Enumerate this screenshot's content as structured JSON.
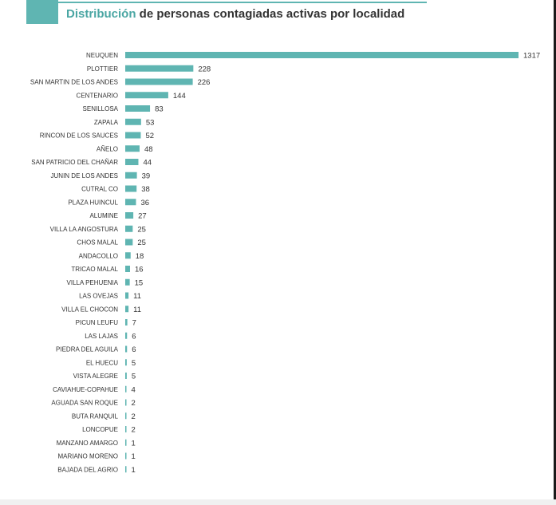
{
  "header": {
    "title_accent": "Distribución",
    "title_rest": " de personas contagiadas activas por localidad"
  },
  "colors": {
    "bar": "#5fb5b2",
    "accent": "#4aa6a3",
    "text": "#333333"
  },
  "chart_data": {
    "type": "bar",
    "orientation": "horizontal",
    "title": "Distribución de personas contagiadas activas por localidad",
    "xlabel": "",
    "ylabel": "",
    "xlim": [
      0,
      1317
    ],
    "grid": false,
    "legend": "none",
    "categories": [
      "NEUQUEN",
      "PLOTTIER",
      "SAN MARTIN DE LOS ANDES",
      "CENTENARIO",
      "SENILLOSA",
      "ZAPALA",
      "RINCON DE LOS SAUCES",
      "AÑELO",
      "SAN PATRICIO DEL CHAÑAR",
      "JUNIN DE LOS ANDES",
      "CUTRAL CO",
      "PLAZA HUINCUL",
      "ALUMINE",
      "VILLA LA ANGOSTURA",
      "CHOS MALAL",
      "ANDACOLLO",
      "TRICAO MALAL",
      "VILLA PEHUENIA",
      "LAS OVEJAS",
      "VILLA EL CHOCON",
      "PICUN LEUFU",
      "LAS LAJAS",
      "PIEDRA DEL AGUILA",
      "EL HUECU",
      "VISTA ALEGRE",
      "CAVIAHUE-COPAHUE",
      "AGUADA SAN ROQUE",
      "BUTA RANQUIL",
      "LONCOPUE",
      "MANZANO AMARGO",
      "MARIANO MORENO",
      "BAJADA DEL AGRIO"
    ],
    "values": [
      1317,
      228,
      226,
      144,
      83,
      53,
      52,
      48,
      44,
      39,
      38,
      36,
      27,
      25,
      25,
      18,
      16,
      15,
      11,
      11,
      7,
      6,
      6,
      5,
      5,
      4,
      2,
      2,
      2,
      1,
      1,
      1
    ]
  }
}
